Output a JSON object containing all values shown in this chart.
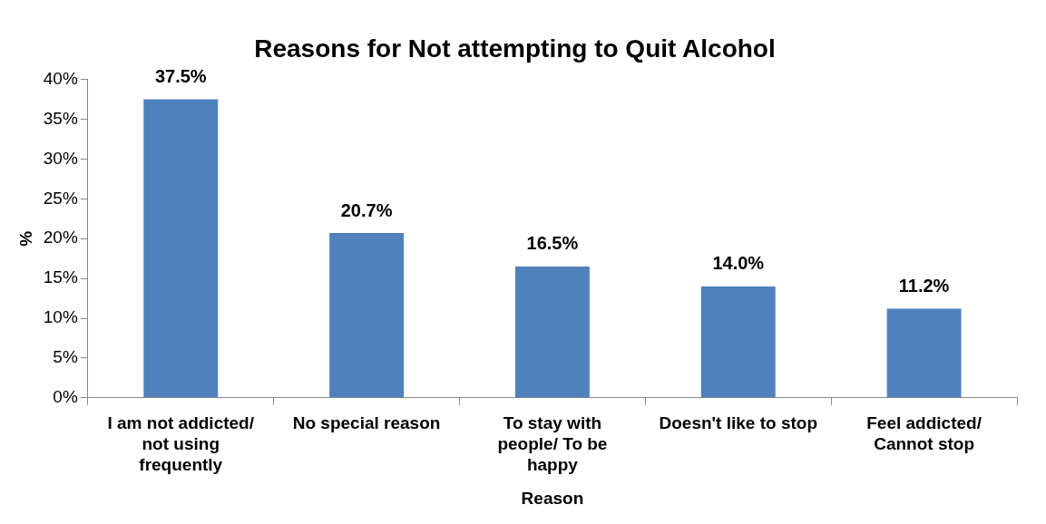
{
  "chart_data": {
    "type": "bar",
    "title": "Reasons for Not attempting to Quit Alcohol",
    "xlabel": "Reason",
    "ylabel": "%",
    "categories": [
      "I am not addicted/ not using frequently",
      "No special reason",
      "To stay with people/ To be happy",
      "Doesn't like to stop",
      "Feel addicted/ Cannot stop"
    ],
    "values": [
      37.5,
      20.7,
      16.5,
      14.0,
      11.2
    ],
    "value_labels": [
      "37.5%",
      "20.7%",
      "16.5%",
      "14.0%",
      "11.2%"
    ],
    "color": "#4f81bd",
    "ylim": [
      0,
      40
    ],
    "yticks": [
      {
        "value": 0,
        "label": "0%"
      },
      {
        "value": 5,
        "label": "5%"
      },
      {
        "value": 10,
        "label": "10%"
      },
      {
        "value": 15,
        "label": "15%"
      },
      {
        "value": 20,
        "label": "20%"
      },
      {
        "value": 25,
        "label": "25%"
      },
      {
        "value": 30,
        "label": "30%"
      },
      {
        "value": 35,
        "label": "35%"
      },
      {
        "value": 40,
        "label": "40%"
      }
    ],
    "grid": false,
    "legend": false
  }
}
